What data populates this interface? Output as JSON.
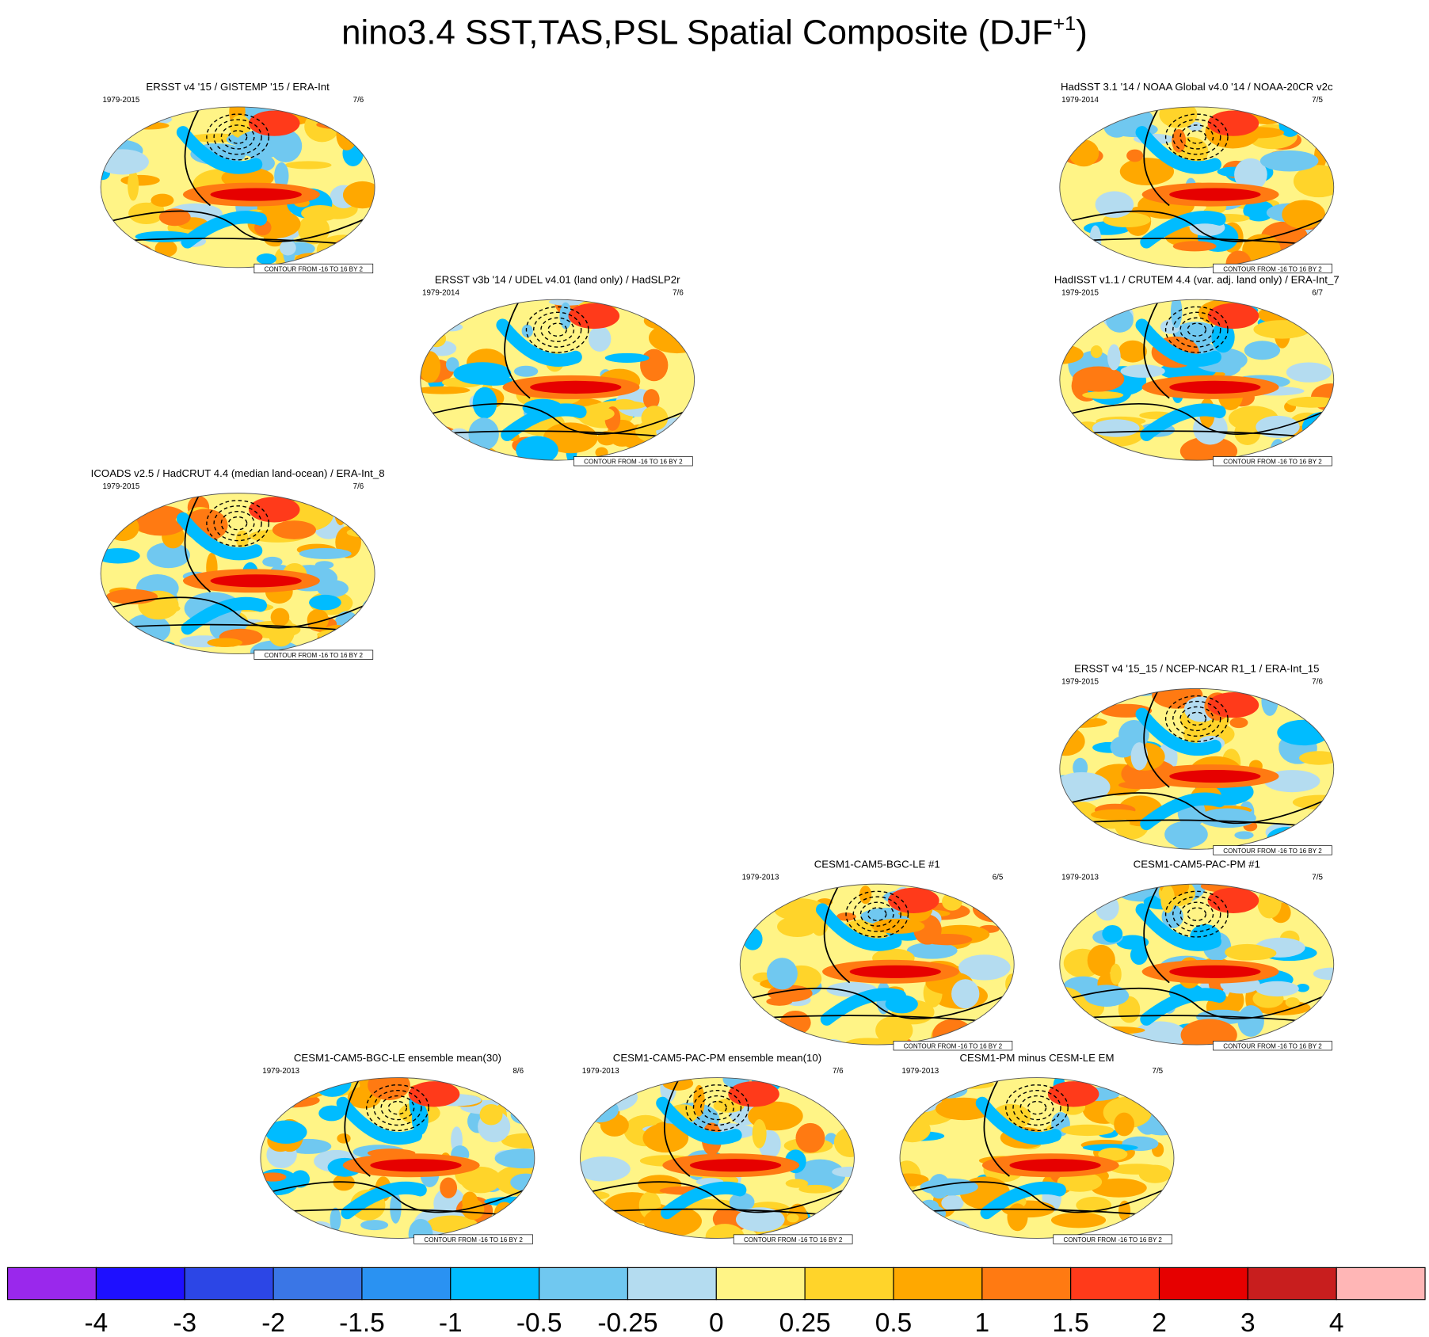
{
  "title": "nino3.4 SST,TAS,PSL Spatial Composite (DJF",
  "title_superscript": "+1",
  "title_end": ")",
  "panels": [
    {
      "title": "ERSST v4 '15 / GISTEMP '15 / ERA-Int",
      "period": "1979-2015",
      "count": "7/6",
      "contour_label": "CONTOUR FROM -16 TO 16 BY 2"
    },
    {
      "title": "HadSST 3.1 '14 / NOAA Global v4.0 '14 / NOAA-20CR v2c",
      "period": "1979-2014",
      "count": "7/5",
      "contour_label": "CONTOUR FROM -16 TO 16 BY 2"
    },
    {
      "title": "ERSST v3b '14 / UDEL v4.01 (land only) / HadSLP2r",
      "period": "1979-2014",
      "count": "7/6",
      "contour_label": "CONTOUR FROM -16 TO 16 BY 2"
    },
    {
      "title": "HadISST v1.1 / CRUTEM 4.4 (var. adj. land only) / ERA-Int_7",
      "period": "1979-2015",
      "count": "6/7",
      "contour_label": "CONTOUR FROM -16 TO 16 BY 2"
    },
    {
      "title": "ICOADS v2.5 / HadCRUT 4.4 (median land-ocean) / ERA-Int_8",
      "period": "1979-2015",
      "count": "7/6",
      "contour_label": "CONTOUR FROM -16 TO 16 BY 2"
    },
    {
      "title": "ERSST v4 '15_15 / NCEP-NCAR R1_1 / ERA-Int_15",
      "period": "1979-2015",
      "count": "7/6",
      "contour_label": "CONTOUR FROM -16 TO 16 BY 2"
    },
    {
      "title": "CESM1-CAM5-BGC-LE #1",
      "period": "1979-2013",
      "count": "6/5",
      "contour_label": "CONTOUR FROM -16 TO 16 BY 2"
    },
    {
      "title": "CESM1-CAM5-PAC-PM #1",
      "period": "1979-2013",
      "count": "7/5",
      "contour_label": "CONTOUR FROM -16 TO 16 BY 2"
    },
    {
      "title": "CESM1-CAM5-BGC-LE ensemble mean(30)",
      "period": "1979-2013",
      "count": "8/6",
      "contour_label": "CONTOUR FROM -16 TO 16 BY 2"
    },
    {
      "title": "CESM1-CAM5-PAC-PM ensemble mean(10)",
      "period": "1979-2013",
      "count": "7/6",
      "contour_label": "CONTOUR FROM -16 TO 16 BY 2"
    },
    {
      "title": "CESM1-PM minus CESM-LE EM",
      "period": "1979-2013",
      "count": "7/5",
      "contour_label": "CONTOUR FROM -16 TO 16 BY 2"
    }
  ],
  "colorbar": {
    "labels": [
      -4,
      -3,
      -2,
      -1.5,
      -1,
      -0.5,
      -0.25,
      0,
      0.25,
      0.5,
      1,
      1.5,
      2,
      3,
      4
    ],
    "colors": [
      "#9a28ec",
      "#1e10ff",
      "#2c46e6",
      "#3a76e6",
      "#2a92f2",
      "#00bcff",
      "#70c8f0",
      "#b4dcf0",
      "#fff486",
      "#ffd42a",
      "#ffa800",
      "#ff7a12",
      "#ff3a1a",
      "#e60000",
      "#c81e1e",
      "#ffb6b6"
    ]
  }
}
